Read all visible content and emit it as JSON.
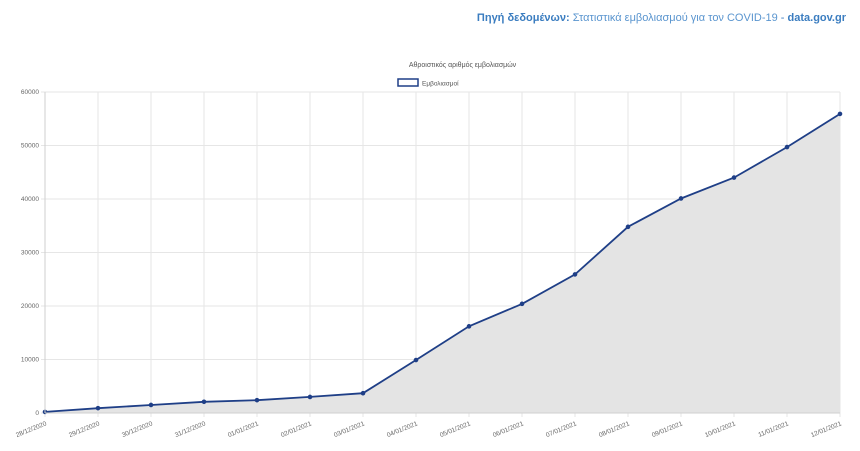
{
  "source": {
    "label": "Πηγή δεδομένων:",
    "name": "Στατιστικά εμβολιασμού για τον COVID-19",
    "separator": " - ",
    "site": "data.gov.gr"
  },
  "colors": {
    "line": "#1f3f87",
    "fill": "#e4e4e4",
    "grid": "#e6e6e6",
    "source_text": "#3b7dc0"
  },
  "chart_data": {
    "type": "area",
    "title": "Αθροιστικός αριθμός εμβολιασμών",
    "xlabel": "",
    "ylabel": "",
    "legend": {
      "position": "top-center",
      "entries": [
        "Εμβολιασμοί"
      ]
    },
    "grid": true,
    "ylim": [
      0,
      60000
    ],
    "yticks": [
      0,
      10000,
      20000,
      30000,
      40000,
      50000,
      60000
    ],
    "ytick_labels": [
      "0",
      "10000",
      "20000",
      "30000",
      "40000",
      "50000",
      "60000"
    ],
    "categories": [
      "28/12/2020",
      "29/12/2020",
      "30/12/2020",
      "31/12/2020",
      "01/01/2021",
      "02/01/2021",
      "03/01/2021",
      "04/01/2021",
      "05/01/2021",
      "06/01/2021",
      "07/01/2021",
      "08/01/2021",
      "09/01/2021",
      "10/01/2021",
      "11/01/2021",
      "12/01/2021"
    ],
    "series": [
      {
        "name": "Εμβολιασμοί",
        "values": [
          200,
          900,
          1500,
          2100,
          2400,
          3000,
          3700,
          9900,
          16200,
          20400,
          25900,
          34800,
          40100,
          44000,
          49700,
          55900
        ]
      }
    ]
  }
}
